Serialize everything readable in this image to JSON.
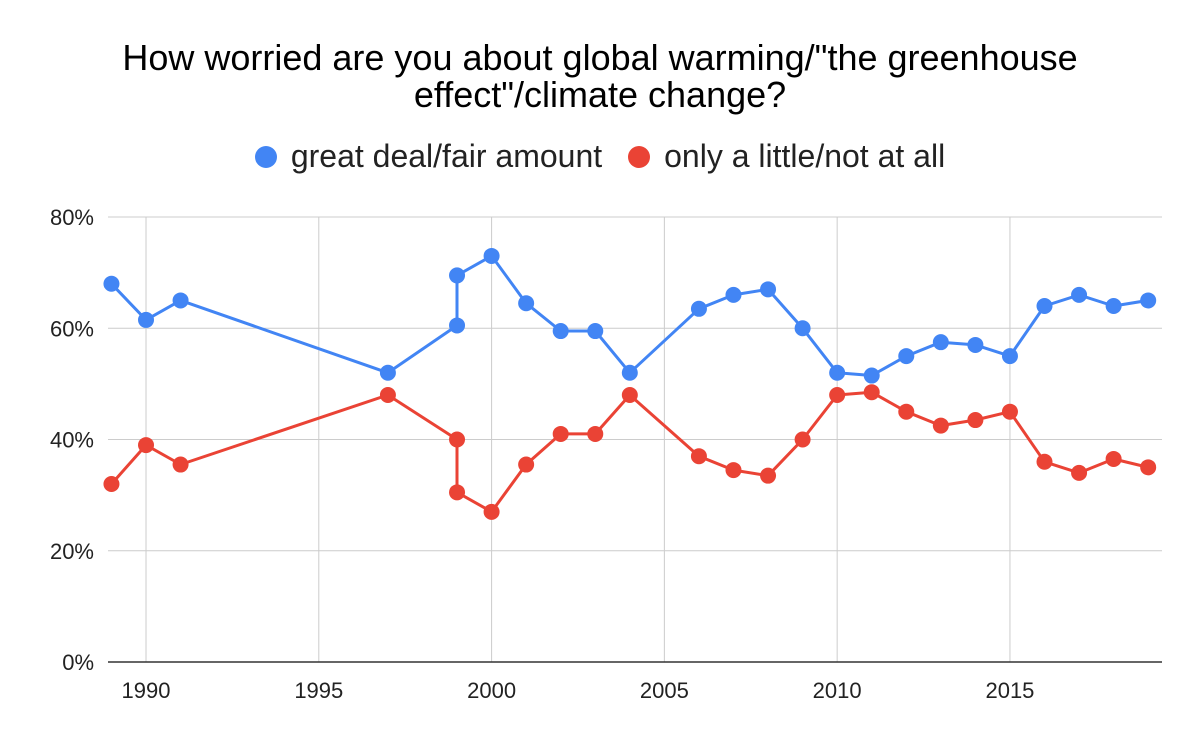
{
  "chart_data": {
    "type": "line",
    "title_lines": [
      "How worried are you about global warming/\"the greenhouse",
      "effect\"/climate change?"
    ],
    "xlabel": "",
    "ylabel": "",
    "xlim": [
      1988.9,
      2019.4
    ],
    "ylim": [
      0,
      80
    ],
    "x_ticks": [
      1990,
      1995,
      2000,
      2005,
      2010,
      2015
    ],
    "x_tick_labels": [
      "1990",
      "1995",
      "2000",
      "2005",
      "2010",
      "2015"
    ],
    "y_ticks": [
      0,
      20,
      40,
      60,
      80
    ],
    "y_tick_labels": [
      "0%",
      "20%",
      "40%",
      "60%",
      "80%"
    ],
    "grid": true,
    "legend_position": "top",
    "series": [
      {
        "name": "great deal/fair amount",
        "color": "#4285f4",
        "x": [
          1989,
          1990,
          1991,
          1997,
          1999,
          1999,
          2000,
          2001,
          2002,
          2003,
          2004,
          2006,
          2007,
          2008,
          2009,
          2010,
          2011,
          2012,
          2013,
          2014,
          2015,
          2016,
          2017,
          2018,
          2019
        ],
        "y": [
          68,
          61.5,
          65,
          52,
          60.5,
          69.5,
          73,
          64.5,
          59.5,
          59.5,
          52,
          63.5,
          66,
          67,
          60,
          52,
          51.5,
          55,
          57.5,
          57,
          55,
          64,
          66,
          64,
          65
        ]
      },
      {
        "name": "only a little/not at all",
        "color": "#ea4335",
        "x": [
          1989,
          1990,
          1991,
          1997,
          1999,
          1999,
          2000,
          2001,
          2002,
          2003,
          2004,
          2006,
          2007,
          2008,
          2009,
          2010,
          2011,
          2012,
          2013,
          2014,
          2015,
          2016,
          2017,
          2018,
          2019
        ],
        "y": [
          32,
          39,
          35.5,
          48,
          40,
          30.5,
          27,
          35.5,
          41,
          41,
          48,
          37,
          34.5,
          33.5,
          40,
          48,
          48.5,
          45,
          42.5,
          43.5,
          45,
          36,
          34,
          36.5,
          35
        ]
      }
    ]
  }
}
